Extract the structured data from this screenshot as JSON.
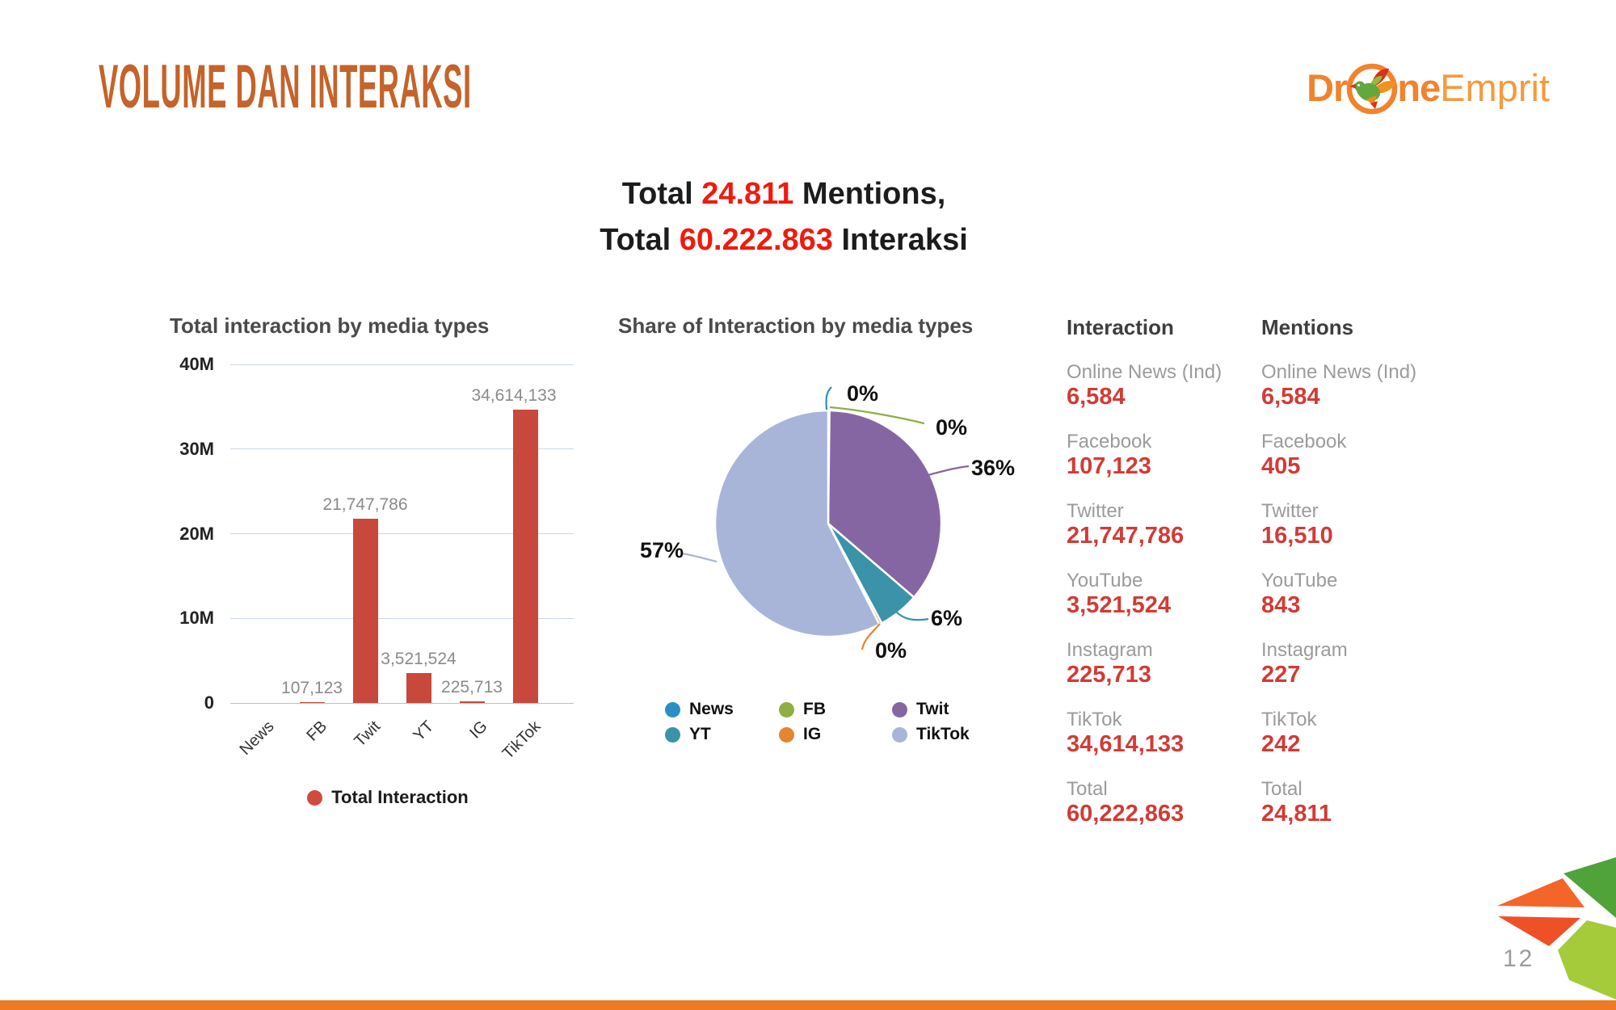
{
  "slide": {
    "title": "VOLUME DAN INTERAKSI",
    "page_number": "12",
    "logo": {
      "part1": "Dr",
      "part2": "ne",
      "part3": "Emprit"
    }
  },
  "subtitle": {
    "l1a": "Total ",
    "l1b": "24.811",
    "l1c": " Mentions,",
    "l2a": "Total ",
    "l2b": "60.222.863",
    "l2c": " Interaksi"
  },
  "chart_data": [
    {
      "type": "bar",
      "title": "Total interaction by media types",
      "categories": [
        "News",
        "FB",
        "Twit",
        "YT",
        "IG",
        "TikTok"
      ],
      "values": [
        6584,
        107123,
        21747786,
        3521524,
        225713,
        34614133
      ],
      "value_labels": [
        "",
        "107,123",
        "21,747,786",
        "3,521,524",
        "225,713",
        "34,614,133"
      ],
      "xlabel": "",
      "ylabel": "",
      "ylim": [
        0,
        40000000
      ],
      "yticks": [
        "0",
        "10M",
        "20M",
        "30M",
        "40M"
      ],
      "grid": true,
      "legend": [
        "Total Interaction"
      ],
      "legend_position": "bottom",
      "bar_color": "#c9483c"
    },
    {
      "type": "pie",
      "title": "Share of Interaction by media types",
      "labels": [
        "News",
        "FB",
        "Twit",
        "YT",
        "IG",
        "TikTok"
      ],
      "values": [
        6584,
        107123,
        21747786,
        3521524,
        225713,
        34614133
      ],
      "percent_labels": [
        "0%",
        "0%",
        "36%",
        "6%",
        "0%",
        "57%"
      ],
      "colors": [
        "#2b8fc6",
        "#8fae45",
        "#8566a2",
        "#3a93a8",
        "#e2862f",
        "#a9b5d8"
      ],
      "legend_position": "bottom"
    }
  ],
  "tables": {
    "interaction": {
      "header": "Interaction",
      "rows": [
        {
          "label": "Online News (Ind)",
          "value": "6,584"
        },
        {
          "label": "Facebook",
          "value": "107,123"
        },
        {
          "label": "Twitter",
          "value": "21,747,786"
        },
        {
          "label": "YouTube",
          "value": "3,521,524"
        },
        {
          "label": "Instagram",
          "value": "225,713"
        },
        {
          "label": "TikTok",
          "value": "34,614,133"
        },
        {
          "label": "Total",
          "value": "60,222,863"
        }
      ]
    },
    "mentions": {
      "header": "Mentions",
      "rows": [
        {
          "label": "Online News (Ind)",
          "value": "6,584"
        },
        {
          "label": "Facebook",
          "value": "405"
        },
        {
          "label": "Twitter",
          "value": "16,510"
        },
        {
          "label": "YouTube",
          "value": "843"
        },
        {
          "label": "Instagram",
          "value": "227"
        },
        {
          "label": "TikTok",
          "value": "242"
        },
        {
          "label": "Total",
          "value": "24,811"
        }
      ]
    }
  },
  "colors": {
    "title_orange": "#c4632a",
    "logo_orange": "#f0832d",
    "logo_light_orange": "#f59a3f",
    "highlight_red": "#ee1b0e",
    "bar_red": "#c9483c",
    "table_value_red": "#d23b35",
    "label_gray": "#9b9b9b",
    "grid_blue": "#c9d6ea",
    "footer_orange": "#ec7b23",
    "corner_dark_green": "#4fa338",
    "corner_light_green": "#a5cb3a",
    "corner_orange": "#f4652a",
    "corner_red_orange": "#ef5126"
  }
}
